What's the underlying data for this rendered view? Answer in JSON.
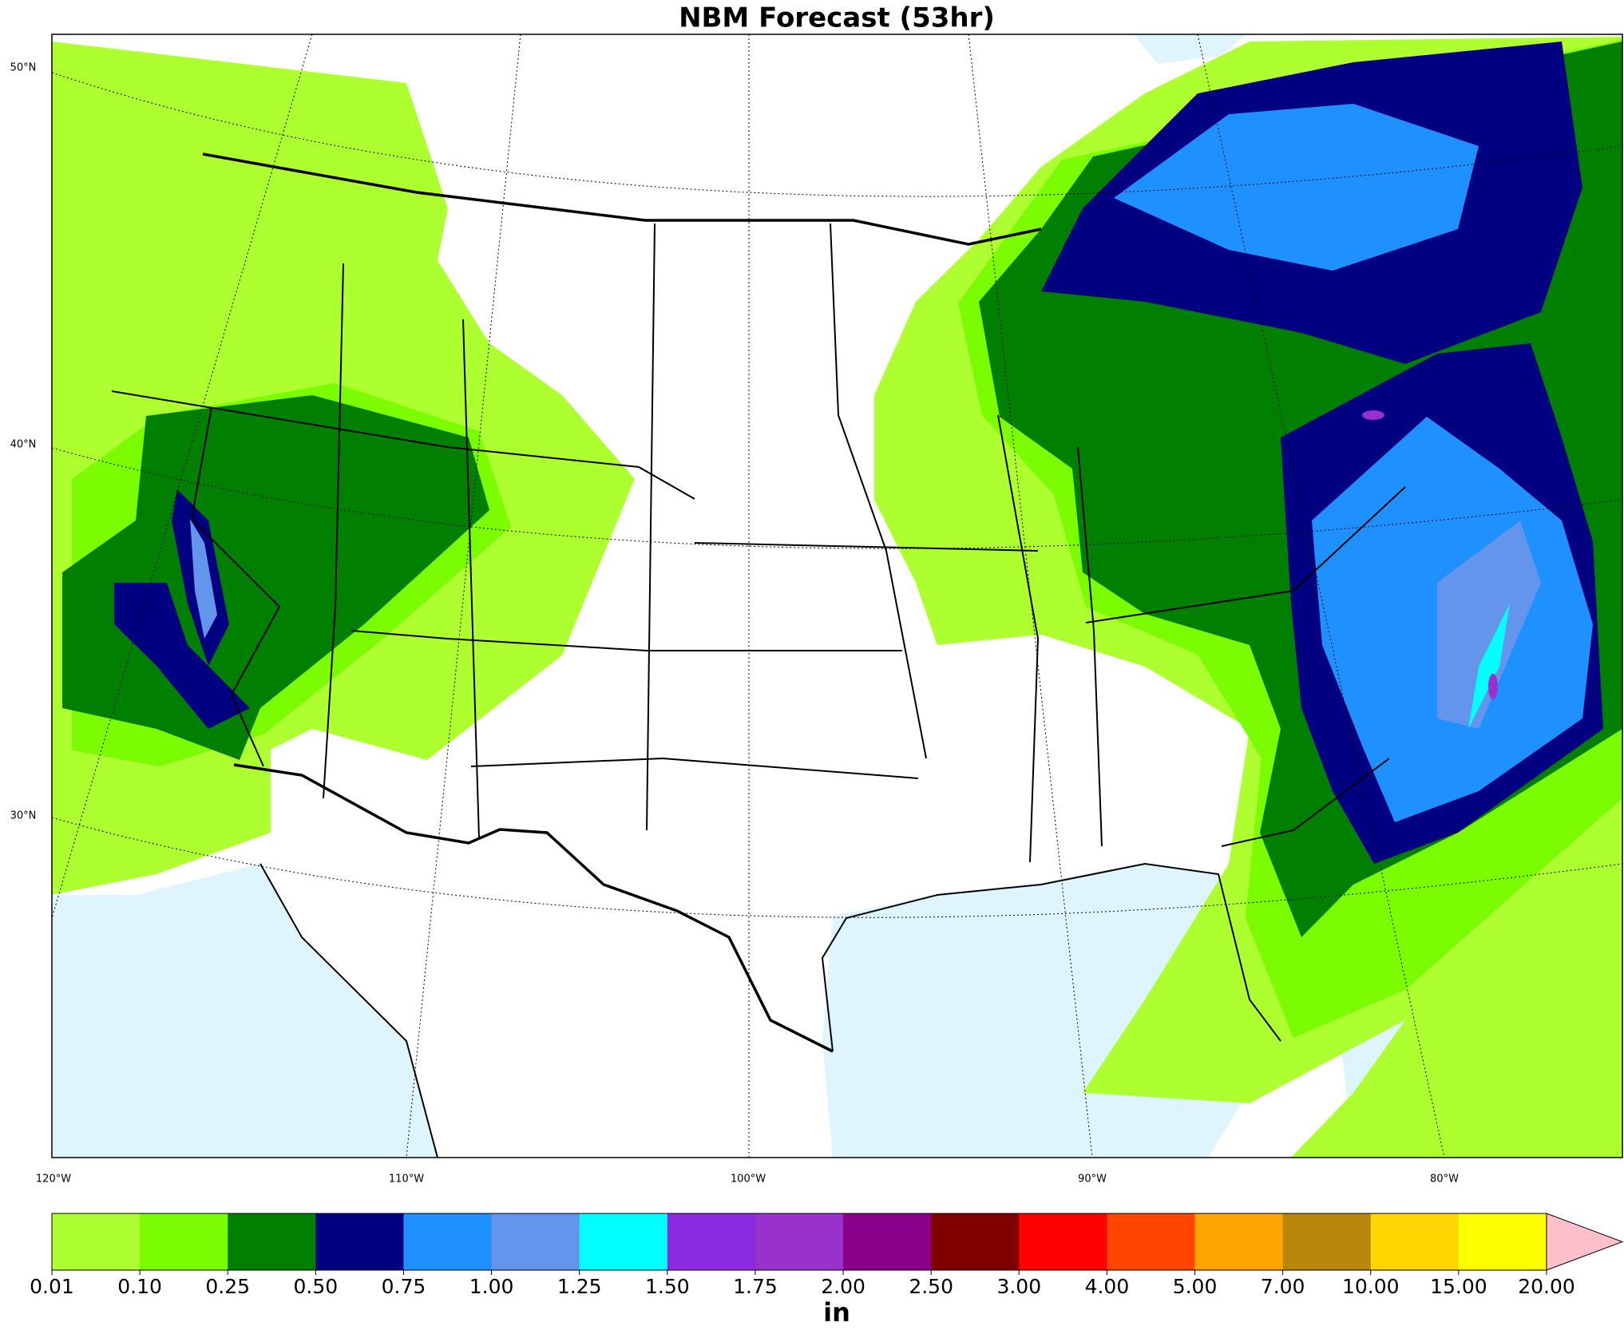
{
  "title": "NBM Forecast (53hr)",
  "map": {
    "lat_labels": [
      "50°N",
      "40°N",
      "30°N"
    ],
    "lon_labels": [
      "120°W",
      "110°W",
      "100°W",
      "90°W",
      "80°W"
    ]
  },
  "colorbar": {
    "label": "in",
    "ticks": [
      {
        "value": 0.01,
        "label": "0.01"
      },
      {
        "value": 0.1,
        "label": "0.10"
      },
      {
        "value": 0.25,
        "label": "0.25"
      },
      {
        "value": 0.5,
        "label": "0.50"
      },
      {
        "value": 0.75,
        "label": "0.75"
      },
      {
        "value": 1,
        "label": "1.00"
      },
      {
        "value": 1.25,
        "label": "1.25"
      },
      {
        "value": 1.5,
        "label": "1.50"
      },
      {
        "value": 1.75,
        "label": "1.75"
      },
      {
        "value": 2,
        "label": "2.00"
      },
      {
        "value": 2.5,
        "label": "2.50"
      },
      {
        "value": 3,
        "label": "3.00"
      },
      {
        "value": 4,
        "label": "4.00"
      },
      {
        "value": 5,
        "label": "5.00"
      },
      {
        "value": 7,
        "label": "7.00"
      },
      {
        "value": 10,
        "label": "10.00"
      },
      {
        "value": 15,
        "label": "15.00"
      },
      {
        "value": 20,
        "label": "20.00"
      }
    ],
    "colors": [
      "#adff2f",
      "#7cfc00",
      "#007f00",
      "#000080",
      "#1e90ff",
      "#6495ed",
      "#00ffff",
      "#8a2be2",
      "#9932cc",
      "#8b008b",
      "#800000",
      "#ff0000",
      "#ff4500",
      "#ffa500",
      "#b8860b",
      "#ffd700",
      "#ffff00"
    ],
    "extend_color": "#ffc0cb"
  }
}
